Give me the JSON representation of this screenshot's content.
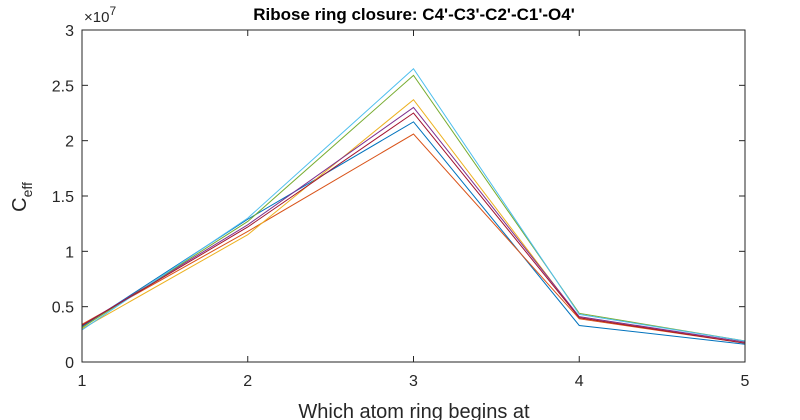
{
  "chart_data": {
    "type": "line",
    "title": "Ribose ring closure: C4'-C3'-C2'-C1'-O4'",
    "xlabel": "Which atom ring begins at",
    "ylabel_main": "C",
    "ylabel_sub": "eff",
    "y_exponent_base": "×10",
    "y_exponent_power": "7",
    "xlim": [
      1,
      5
    ],
    "ylim": [
      0,
      30000000
    ],
    "x": [
      1,
      2,
      3,
      4,
      5
    ],
    "xticks": [
      "1",
      "2",
      "3",
      "4",
      "5"
    ],
    "yticks": [
      {
        "value": 0,
        "label": "0"
      },
      {
        "value": 5000000,
        "label": "0.5"
      },
      {
        "value": 10000000,
        "label": "1"
      },
      {
        "value": 15000000,
        "label": "1.5"
      },
      {
        "value": 20000000,
        "label": "2"
      },
      {
        "value": 25000000,
        "label": "2.5"
      },
      {
        "value": 30000000,
        "label": "3"
      }
    ],
    "grid": false,
    "series": [
      {
        "color": "#0072BD",
        "values": [
          3200000,
          12900000,
          21700000,
          3300000,
          1600000
        ]
      },
      {
        "color": "#D95319",
        "values": [
          3400000,
          11800000,
          20600000,
          3900000,
          1700000
        ]
      },
      {
        "color": "#EDB120",
        "values": [
          3000000,
          11500000,
          23700000,
          4000000,
          1800000
        ]
      },
      {
        "color": "#7E2F8E",
        "values": [
          3300000,
          12400000,
          23000000,
          4100000,
          1800000
        ]
      },
      {
        "color": "#77AC30",
        "values": [
          3100000,
          12700000,
          25900000,
          4400000,
          1900000
        ]
      },
      {
        "color": "#4DBEEE",
        "values": [
          2900000,
          13000000,
          26500000,
          4300000,
          1900000
        ]
      },
      {
        "color": "#A2142F",
        "values": [
          3300000,
          12200000,
          22500000,
          4000000,
          1700000
        ]
      }
    ]
  }
}
